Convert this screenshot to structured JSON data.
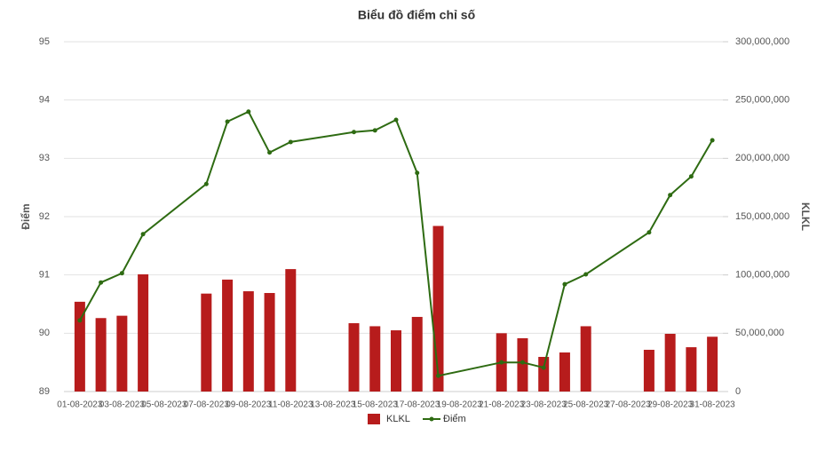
{
  "chart_data": {
    "type": "bar_line",
    "title": "Biểu đồ điểm chỉ số",
    "y_label": "Điểm",
    "y2_label": "KLKL",
    "categories": [
      "01-08-2023",
      null,
      "03-08-2023",
      null,
      "05-08-2023",
      null,
      "07-08-2023",
      null,
      "09-08-2023",
      null,
      "11-08-2023",
      null,
      "13-08-2023",
      null,
      "15-08-2023",
      null,
      "17-08-2023",
      null,
      "19-08-2023",
      null,
      "21-08-2023",
      null,
      "23-08-2023",
      null,
      "25-08-2023",
      null,
      "27-08-2023",
      null,
      "29-08-2023",
      null,
      "31-08-2023"
    ],
    "series": [
      {
        "name": "KLKL",
        "type": "bar",
        "axis": "y2",
        "color": "#b71c1c",
        "values": [
          77000000,
          63000000,
          65000000,
          100500000,
          null,
          null,
          84000000,
          96000000,
          86000000,
          84500000,
          105000000,
          null,
          null,
          58600000,
          56000000,
          52500000,
          64000000,
          142000000,
          null,
          null,
          50000000,
          45700000,
          29700000,
          33500000,
          56000000,
          null,
          null,
          35800000,
          49500000,
          38000000,
          47000000
        ]
      },
      {
        "name": "Điểm",
        "type": "line",
        "axis": "y",
        "color": "#2e6b12",
        "values": [
          90.22,
          90.87,
          91.03,
          91.7,
          null,
          null,
          92.56,
          93.63,
          93.8,
          93.1,
          93.28,
          null,
          null,
          93.45,
          93.48,
          93.66,
          92.75,
          89.27,
          null,
          null,
          89.5,
          89.5,
          89.41,
          90.84,
          91.01,
          null,
          null,
          91.73,
          92.37,
          92.69,
          93.31
        ]
      }
    ],
    "connect_gaps": true,
    "ylim": [
      89,
      95
    ],
    "yticks": [
      89,
      90,
      91,
      92,
      93,
      94,
      95
    ],
    "y2lim": [
      0,
      300000000
    ],
    "y2ticks": [
      0,
      {
        "value": 50000000,
        "label": "50,000,000"
      },
      {
        "value": 100000000,
        "label": "100,000,000"
      },
      {
        "value": 150000000,
        "label": "150,000,000"
      },
      {
        "value": 200000000,
        "label": "200,000,000"
      },
      {
        "value": 250000000,
        "label": "250,000,000"
      },
      {
        "value": 300000000,
        "label": "300,000,000"
      }
    ],
    "grid": true,
    "legend": "bottom"
  }
}
